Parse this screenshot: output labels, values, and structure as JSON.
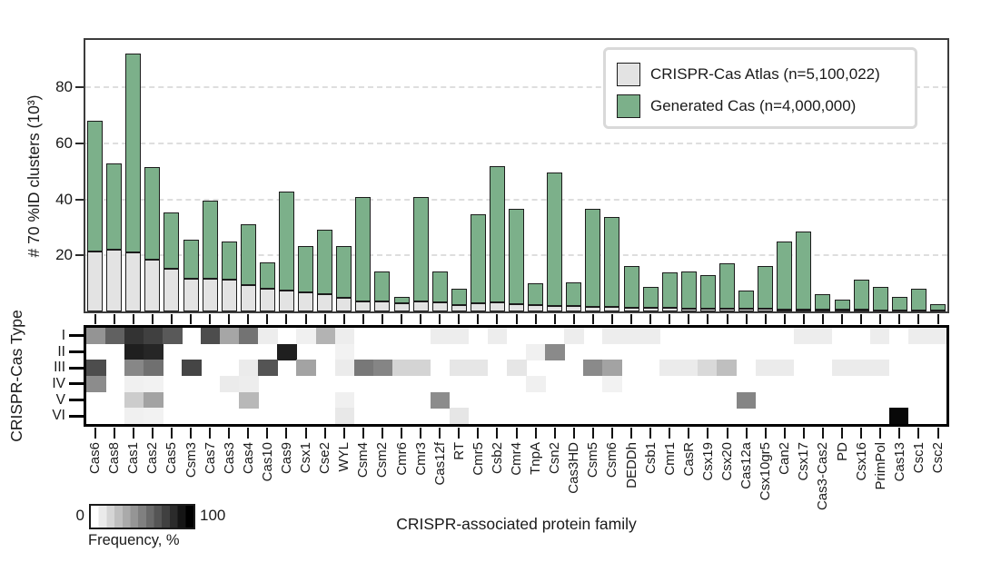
{
  "figure": {
    "bar_ylabel": "# 70 %ID clusters (10³)",
    "heatmap_ylabel": "CRISPR-Cas Type",
    "xlabel": "CRISPR-associated protein family",
    "colorbar": {
      "min": "0",
      "max": "100",
      "label": "Frequency, %"
    }
  },
  "colors": {
    "atlas_gray": "#e3e3e3",
    "generated_green": "#7cb08a",
    "bar_border": "#1c1c1c",
    "plot_border": "#3c3c3c",
    "heatmap_border": "#000000",
    "gridline": "#dedede"
  },
  "chart_data": [
    {
      "type": "bar",
      "stacked": true,
      "title": "",
      "xlabel": "CRISPR-associated protein family",
      "ylabel": "# 70 %ID clusters (10³)",
      "ylim": [
        0,
        97
      ],
      "yticks": [
        20,
        40,
        60,
        80
      ],
      "grid": "horizontal-dashed",
      "legend_position": "top-right",
      "categories": [
        "Cas6",
        "Cas8",
        "Cas1",
        "Cas2",
        "Cas5",
        "Csm3",
        "Cas7",
        "Cas3",
        "Cas4",
        "Cas10",
        "Cas9",
        "Csx1",
        "Cse2",
        "WYL",
        "Csm4",
        "Csm2",
        "Cmr6",
        "Cmr3",
        "Cas12f",
        "RT",
        "Cmr5",
        "Csb2",
        "Cmr4",
        "TnpA",
        "Csn2",
        "Cas3HD",
        "Csm5",
        "Csm6",
        "DEDDh",
        "Csb1",
        "Cmr1",
        "CasR",
        "Csx19",
        "Csx20",
        "Cas12a",
        "Csx10gr5",
        "Can2",
        "Csx17",
        "Cas3-Cas2",
        "PD",
        "Csx16",
        "PrimPol",
        "Cas13",
        "Csc1",
        "Csc2"
      ],
      "series": [
        {
          "name": "CRISPR-Cas Atlas (n=5,100,022)",
          "color": "#e3e3e3",
          "values": [
            21.5,
            22,
            21,
            18.5,
            15.3,
            11.8,
            11.6,
            11.4,
            9.5,
            8.2,
            7.5,
            6.9,
            6.1,
            4.8,
            3.7,
            3.5,
            2.8,
            3.6,
            3.1,
            2.3,
            2.8,
            3.1,
            2.6,
            2.2,
            2.1,
            1.9,
            1.7,
            1.6,
            1.4,
            1.2,
            1.2,
            1.1,
            1.0,
            1.0,
            0.9,
            0.9,
            0.8,
            0.8,
            0.7,
            0.6,
            0.6,
            0.5,
            0.5,
            0.4,
            0.4
          ]
        },
        {
          "name": "Generated Cas (n=4,000,000)",
          "color": "#7cb08a",
          "values": [
            46.5,
            31,
            71,
            33,
            20.2,
            13.7,
            27.9,
            13.6,
            21.5,
            9.3,
            35.5,
            16.4,
            23.1,
            18.6,
            37.3,
            10.9,
            2.3,
            37.4,
            11.3,
            5.9,
            32,
            48.9,
            34.1,
            7.9,
            47.7,
            8.5,
            35,
            32.1,
            14.8,
            7.6,
            12.8,
            13.3,
            12.1,
            16.2,
            6.6,
            15.2,
            24.3,
            27.6,
            5.6,
            3.8,
            10.7,
            8.4,
            4.7,
            7.7,
            2.1
          ]
        }
      ]
    },
    {
      "type": "heatmap",
      "title": "",
      "ylabel": "CRISPR-Cas Type",
      "colormap": "Greys",
      "rows": [
        "I",
        "II",
        "III",
        "IV",
        "V",
        "VI"
      ],
      "columns": [
        "Cas6",
        "Cas8",
        "Cas1",
        "Cas2",
        "Cas5",
        "Csm3",
        "Cas7",
        "Cas3",
        "Cas4",
        "Cas10",
        "Cas9",
        "Csx1",
        "Cse2",
        "WYL",
        "Csm4",
        "Csm2",
        "Cmr6",
        "Cmr3",
        "Cas12f",
        "RT",
        "Cmr5",
        "Csb2",
        "Cmr4",
        "TnpA",
        "Csn2",
        "Cas3HD",
        "Csm5",
        "Csm6",
        "DEDDh",
        "Csb1",
        "Cmr1",
        "CasR",
        "Csx19",
        "Csx20",
        "Cas12a",
        "Csx10gr5",
        "Can2",
        "Csx17",
        "Cas3-Cas2",
        "PD",
        "Csx16",
        "PrimPol",
        "Cas13",
        "Csc1",
        "Csc2"
      ],
      "values": {
        "I": [
          42,
          62,
          80,
          75,
          65,
          0,
          70,
          35,
          55,
          7,
          0,
          6,
          30,
          7,
          0,
          0,
          0,
          0,
          7,
          7,
          0,
          7,
          0,
          0,
          0,
          7,
          0,
          7,
          7,
          7,
          0,
          0,
          0,
          0,
          0,
          0,
          0,
          7,
          7,
          0,
          0,
          7,
          0,
          7,
          7
        ],
        "II": [
          0,
          0,
          88,
          85,
          0,
          0,
          0,
          0,
          0,
          0,
          88,
          0,
          0,
          5,
          0,
          0,
          0,
          0,
          0,
          0,
          0,
          0,
          0,
          6,
          46,
          0,
          0,
          0,
          0,
          0,
          0,
          0,
          0,
          0,
          0,
          0,
          0,
          0,
          0,
          0,
          0,
          0,
          0,
          0,
          0
        ],
        "III": [
          70,
          0,
          47,
          56,
          0,
          73,
          0,
          0,
          8,
          67,
          0,
          36,
          0,
          8,
          53,
          48,
          17,
          17,
          0,
          10,
          10,
          0,
          10,
          0,
          0,
          0,
          46,
          36,
          0,
          0,
          8,
          8,
          15,
          25,
          0,
          8,
          8,
          0,
          0,
          8,
          8,
          8,
          0,
          0,
          0
        ],
        "IV": [
          45,
          0,
          6,
          5,
          0,
          0,
          0,
          8,
          7,
          0,
          0,
          0,
          0,
          0,
          0,
          0,
          0,
          0,
          0,
          0,
          0,
          0,
          0,
          6,
          0,
          0,
          0,
          5,
          0,
          0,
          0,
          0,
          0,
          0,
          0,
          0,
          0,
          0,
          0,
          0,
          0,
          0,
          0,
          0,
          0
        ],
        "V": [
          0,
          0,
          20,
          36,
          0,
          0,
          0,
          0,
          28,
          0,
          0,
          0,
          0,
          6,
          0,
          0,
          0,
          0,
          45,
          0,
          0,
          0,
          0,
          0,
          0,
          0,
          0,
          0,
          0,
          0,
          0,
          0,
          0,
          0,
          48,
          0,
          0,
          0,
          0,
          0,
          0,
          0,
          0,
          0,
          0
        ],
        "VI": [
          0,
          0,
          6,
          5,
          0,
          0,
          0,
          0,
          0,
          0,
          0,
          0,
          0,
          9,
          0,
          0,
          0,
          0,
          0,
          10,
          0,
          0,
          0,
          0,
          0,
          0,
          0,
          0,
          0,
          0,
          0,
          0,
          0,
          0,
          0,
          0,
          0,
          0,
          0,
          0,
          0,
          0,
          97,
          0,
          0
        ]
      },
      "colorbar": {
        "min": "0",
        "max": "100",
        "label": "Frequency, %"
      }
    }
  ]
}
